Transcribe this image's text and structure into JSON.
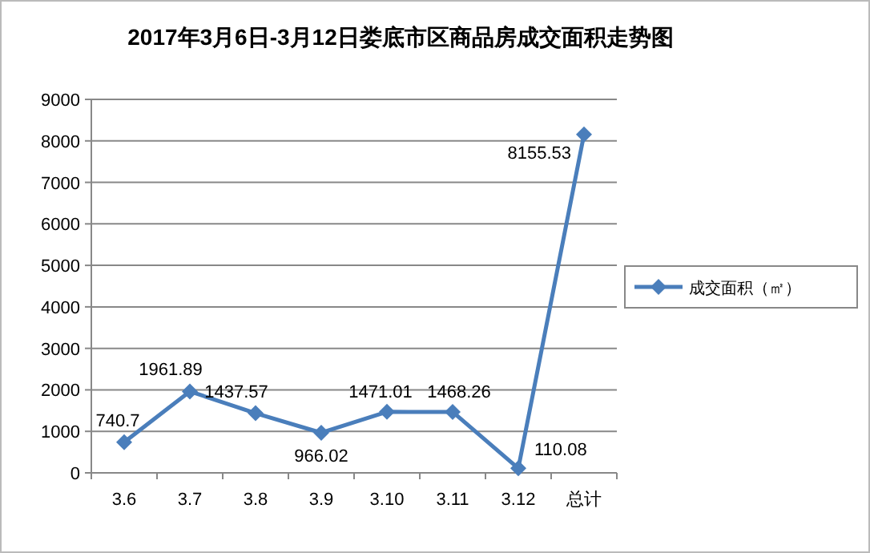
{
  "chart_data": {
    "type": "line",
    "title": "2017年3月6日-3月12日娄底市区商品房成交面积走势图",
    "categories": [
      "3.6",
      "3.7",
      "3.8",
      "3.9",
      "3.10",
      "3.11",
      "3.12",
      "总计"
    ],
    "series": [
      {
        "name": "成交面积（㎡）",
        "color": "#4a7ebb",
        "values": [
          740.7,
          1961.89,
          1437.57,
          966.02,
          1471.01,
          1468.26,
          110.08,
          8155.53
        ]
      }
    ],
    "ylim": [
      0,
      9000
    ],
    "yticks": [
      0,
      1000,
      2000,
      3000,
      4000,
      5000,
      6000,
      7000,
      8000,
      9000
    ],
    "grid": "y",
    "legend": "right",
    "marker": "diamond",
    "data_labels": true
  }
}
